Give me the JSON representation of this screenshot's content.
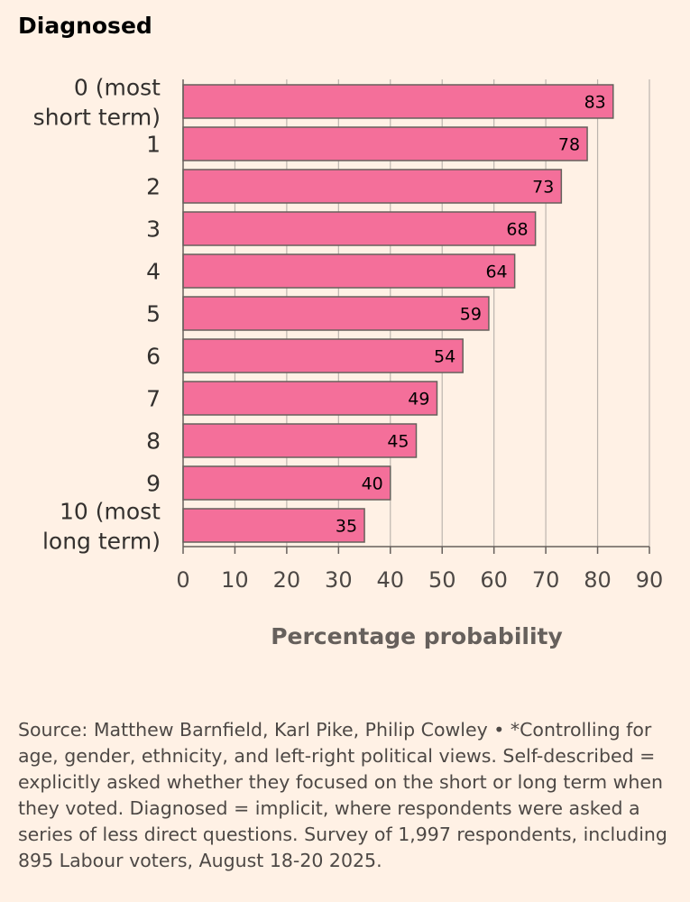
{
  "title": "Diagnosed",
  "footnote": "Source: Matthew Barnfield, Karl Pike, Philip Cowley • *Controlling for age, gender, ethnicity, and left-right political views. Self-described = explicitly asked whether they focused on the short or long term when they voted. Diagnosed = implicit, where respondents were asked a series of less direct questions. Survey of 1,997 respondents, including 895 Labour voters, August 18-20 2025.",
  "colors": {
    "bar_fill": "#f46f9a",
    "bar_stroke": "#66605c",
    "grid": "#bcb5ae",
    "tick_text": "#4d4845",
    "label_text": "#33302e"
  },
  "chart_data": {
    "type": "bar",
    "orientation": "horizontal",
    "title": "Diagnosed",
    "categories": [
      [
        "0 (most",
        "short term)"
      ],
      [
        "1"
      ],
      [
        "2"
      ],
      [
        "3"
      ],
      [
        "4"
      ],
      [
        "5"
      ],
      [
        "6"
      ],
      [
        "7"
      ],
      [
        "8"
      ],
      [
        "9"
      ],
      [
        "10 (most",
        "long term)"
      ]
    ],
    "values": [
      83,
      78,
      73,
      68,
      64,
      59,
      54,
      49,
      45,
      40,
      35
    ],
    "data_labels": [
      "83",
      "78",
      "73",
      "68",
      "64",
      "59",
      "54",
      "49",
      "45",
      "40",
      "35"
    ],
    "xlabel": "Percentage probability",
    "ylabel": "",
    "xlim": [
      0,
      90
    ],
    "xticks": [
      0,
      10,
      20,
      30,
      40,
      50,
      60,
      70,
      80,
      90
    ],
    "grid": true
  }
}
